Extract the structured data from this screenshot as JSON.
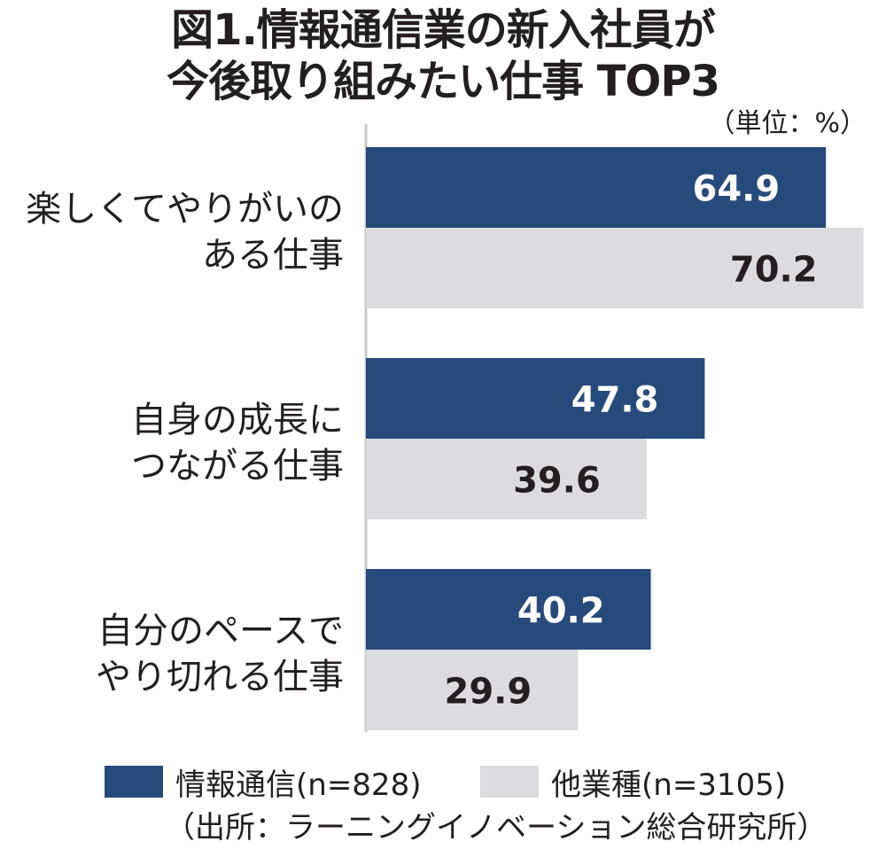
{
  "title_line1": "図1.情報通信業の新入社員が",
  "title_line2": "今後取り組みたい仕事 TOP3",
  "unit": "（単位：%）",
  "source": "（出所：ラーニングイノベーション総合研究所）",
  "colors": {
    "series1": "#274a7c",
    "series2": "#dcdcde",
    "text": "#231f20",
    "axis": "#c8c8c8"
  },
  "chart_data": {
    "type": "bar",
    "orientation": "horizontal",
    "categories": [
      [
        "楽しくてやりがいの",
        "ある仕事"
      ],
      [
        "自身の成長に",
        "つながる仕事"
      ],
      [
        "自分のペースで",
        "やり切れる仕事"
      ]
    ],
    "series": [
      {
        "name": "情報通信(n=828)",
        "values": [
          64.9,
          47.8,
          40.2
        ]
      },
      {
        "name": "他業種(n=3105)",
        "values": [
          70.2,
          39.6,
          29.9
        ]
      }
    ],
    "xlim": [
      0,
      72
    ],
    "grid": false,
    "legend_position": "bottom",
    "data_labels": true
  }
}
